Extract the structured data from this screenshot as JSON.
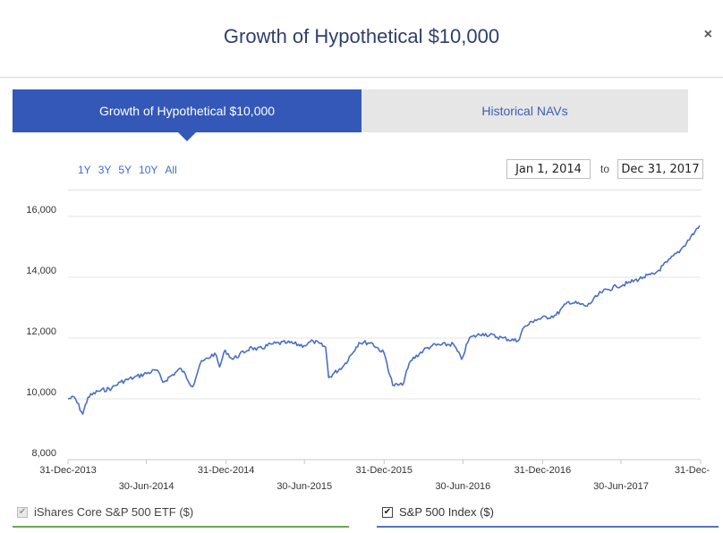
{
  "modal": {
    "title": "Growth of Hypothetical $10,000",
    "close_symbol": "×"
  },
  "tabs": [
    {
      "label": "Growth of Hypothetical $10,000",
      "active": true
    },
    {
      "label": "Historical NAVs",
      "active": false
    }
  ],
  "ranges": [
    "1Y",
    "3Y",
    "5Y",
    "10Y",
    "All"
  ],
  "date_range": {
    "from": "Jan 1, 2014",
    "to_label": "to",
    "to": "Dec 31, 2017"
  },
  "legend": [
    {
      "label": "iShares Core S&P 500 ETF ($)",
      "checked": true,
      "enabled": false,
      "color": "#6aa84f"
    },
    {
      "label": "S&P 500 Index ($)",
      "checked": true,
      "enabled": true,
      "color": "#5673c4"
    }
  ],
  "chart_data": {
    "type": "line",
    "title": "",
    "xlabel": "",
    "ylabel": "",
    "ylim": [
      8000,
      16000
    ],
    "xlim": [
      "2013-12-31",
      "2017-12-31"
    ],
    "yticks": [
      8000,
      10000,
      12000,
      14000,
      16000
    ],
    "ytick_labels": [
      "8,000",
      "10,000",
      "12,000",
      "14,000",
      "16,000"
    ],
    "xticks": [
      {
        "date": "2013-12-31",
        "label": "31-Dec-2013",
        "row": 1
      },
      {
        "date": "2014-06-30",
        "label": "30-Jun-2014",
        "row": 2
      },
      {
        "date": "2014-12-31",
        "label": "31-Dec-2014",
        "row": 1
      },
      {
        "date": "2015-06-30",
        "label": "30-Jun-2015",
        "row": 2
      },
      {
        "date": "2015-12-31",
        "label": "31-Dec-2015",
        "row": 1
      },
      {
        "date": "2016-06-30",
        "label": "30-Jun-2016",
        "row": 2
      },
      {
        "date": "2016-12-31",
        "label": "31-Dec-2016",
        "row": 1
      },
      {
        "date": "2017-06-30",
        "label": "30-Jun-2017",
        "row": 2
      },
      {
        "date": "2017-12-31",
        "label": "31-Dec-",
        "row": 1
      }
    ],
    "grid": true,
    "series": [
      {
        "name": "S&P 500 Index ($)",
        "color": "#4a6fc4",
        "x": [
          "2013-12-31",
          "2014-01-15",
          "2014-02-03",
          "2014-02-15",
          "2014-03-10",
          "2014-04-11",
          "2014-05-01",
          "2014-06-01",
          "2014-07-24",
          "2014-08-07",
          "2014-09-18",
          "2014-10-15",
          "2014-11-01",
          "2014-12-05",
          "2014-12-16",
          "2014-12-29",
          "2015-01-15",
          "2015-02-28",
          "2015-03-11",
          "2015-04-15",
          "2015-05-21",
          "2015-06-29",
          "2015-07-20",
          "2015-08-18",
          "2015-08-25",
          "2015-09-29",
          "2015-11-03",
          "2015-12-01",
          "2015-12-31",
          "2016-01-20",
          "2016-02-11",
          "2016-03-01",
          "2016-03-31",
          "2016-04-20",
          "2016-06-08",
          "2016-06-27",
          "2016-07-15",
          "2016-08-15",
          "2016-09-30",
          "2016-11-04",
          "2016-11-15",
          "2016-12-13",
          "2017-01-31",
          "2017-03-01",
          "2017-04-13",
          "2017-05-15",
          "2017-06-19",
          "2017-07-15",
          "2017-08-21",
          "2017-09-15",
          "2017-10-15",
          "2017-11-15",
          "2017-12-18",
          "2017-12-29"
        ],
        "values": [
          10000,
          10050,
          9500,
          10050,
          10250,
          10350,
          10550,
          10700,
          10950,
          10550,
          11000,
          10400,
          11150,
          11500,
          11050,
          11600,
          11300,
          11700,
          11600,
          11800,
          11850,
          11750,
          11900,
          11700,
          10700,
          11100,
          11850,
          11850,
          11500,
          10450,
          10450,
          11250,
          11600,
          11750,
          11800,
          11300,
          12000,
          12150,
          12000,
          11900,
          12300,
          12600,
          12750,
          13200,
          13050,
          13500,
          13700,
          13800,
          14000,
          14100,
          14500,
          14900,
          15500,
          15700
        ]
      }
    ]
  }
}
